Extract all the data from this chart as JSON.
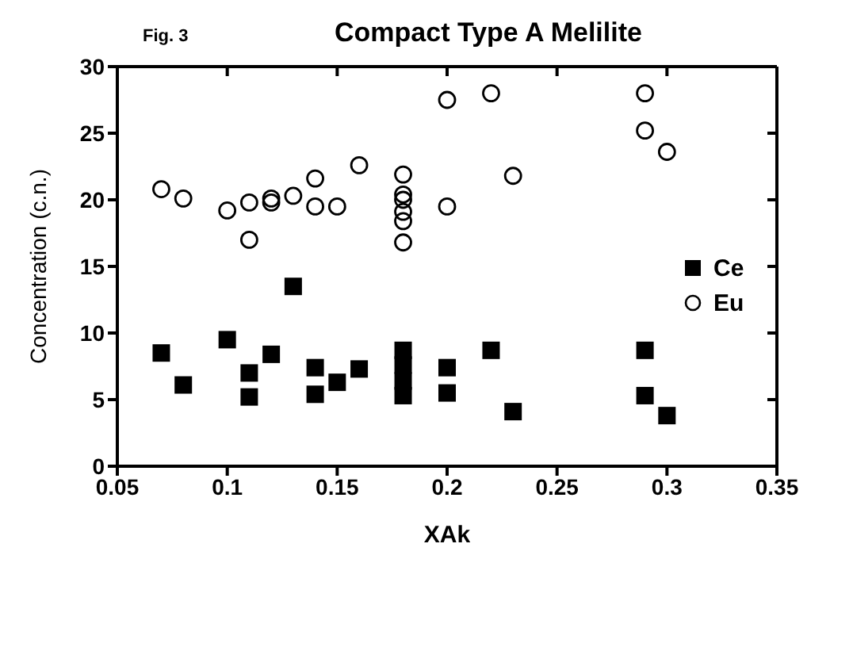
{
  "chart_data": {
    "type": "scatter",
    "title": "Compact Type A Melilite",
    "xlabel": "XAk",
    "ylabel": "Concentration (c.n.)",
    "annotations": [
      "Fig. 3"
    ],
    "xlim": [
      0.05,
      0.35
    ],
    "xticks": [
      0.05,
      0.1,
      0.15,
      0.2,
      0.25,
      0.3,
      0.35
    ],
    "ylim": [
      0,
      30
    ],
    "yticks": [
      0,
      5,
      10,
      15,
      20,
      25,
      30
    ],
    "legend": "right",
    "series": [
      {
        "name": "Ce",
        "color": "#000000",
        "marker": "square",
        "x": [
          0.07,
          0.08,
          0.1,
          0.11,
          0.11,
          0.12,
          0.13,
          0.14,
          0.14,
          0.15,
          0.16,
          0.18,
          0.18,
          0.18,
          0.18,
          0.2,
          0.2,
          0.22,
          0.23,
          0.29,
          0.29,
          0.3
        ],
        "values": [
          8.5,
          6.1,
          9.5,
          7.0,
          5.2,
          8.4,
          13.5,
          7.4,
          5.4,
          6.3,
          7.3,
          5.3,
          6.4,
          7.6,
          8.7,
          7.4,
          5.5,
          8.7,
          4.1,
          8.7,
          5.3,
          3.8
        ]
      },
      {
        "name": "Eu",
        "color": "#000000",
        "marker": "circle",
        "x": [
          0.07,
          0.08,
          0.1,
          0.11,
          0.11,
          0.12,
          0.12,
          0.13,
          0.14,
          0.14,
          0.15,
          0.16,
          0.18,
          0.18,
          0.18,
          0.18,
          0.18,
          0.18,
          0.2,
          0.2,
          0.22,
          0.23,
          0.29,
          0.29,
          0.3
        ],
        "values": [
          20.8,
          20.1,
          19.2,
          19.8,
          17.0,
          20.1,
          19.8,
          20.3,
          21.6,
          19.5,
          19.5,
          22.6,
          21.9,
          20.4,
          20.0,
          19.1,
          18.4,
          16.8,
          27.5,
          19.5,
          28.0,
          21.8,
          28.0,
          25.2,
          23.6
        ]
      }
    ]
  }
}
